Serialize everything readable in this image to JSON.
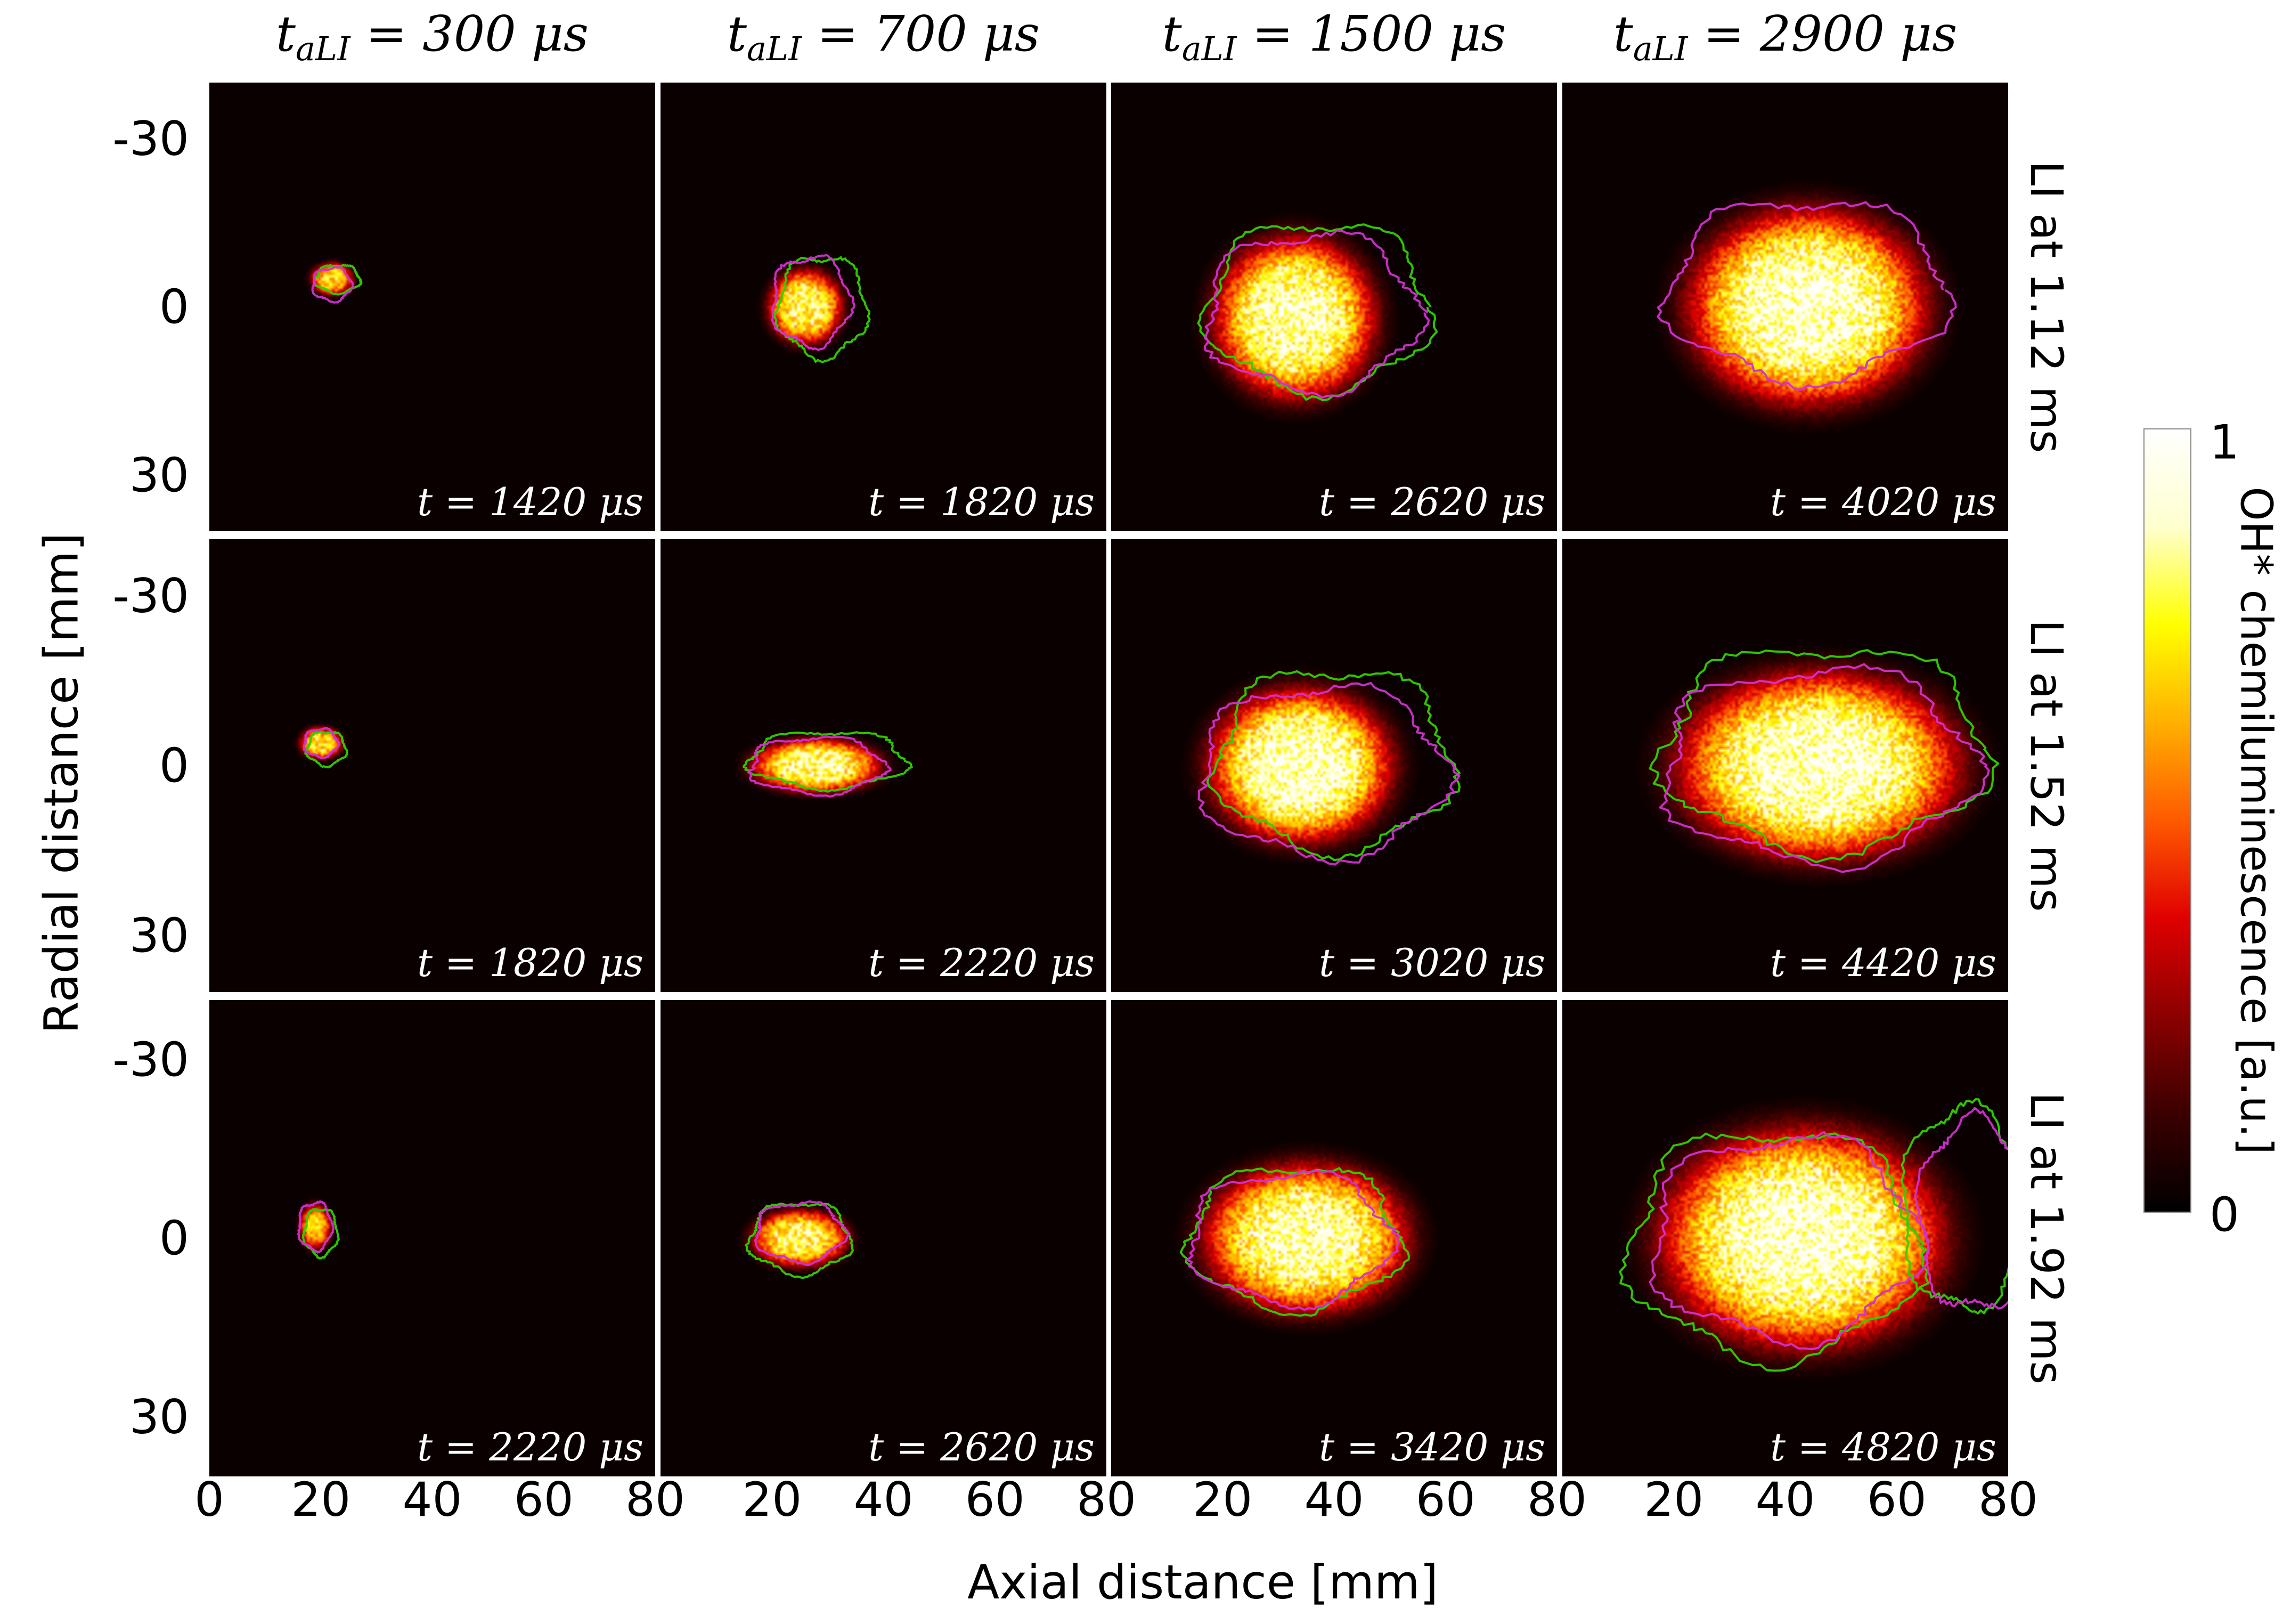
{
  "chart_data": {
    "type": "heatmap",
    "column_headers": [
      {
        "sym": "t",
        "sub": "aLI",
        "rest": " = 300 μs"
      },
      {
        "sym": "t",
        "sub": "aLI",
        "rest": " = 700 μs"
      },
      {
        "sym": "t",
        "sub": "aLI",
        "rest": " = 1500 μs"
      },
      {
        "sym": "t",
        "sub": "aLI",
        "rest": " = 2900 μs"
      }
    ],
    "row_labels": [
      "LI at 1.12 ms",
      "LI at 1.52 ms",
      "LI at 1.92 ms"
    ],
    "panel_times": [
      [
        "t = 1420 μs",
        "t = 1820 μs",
        "t = 2620 μs",
        "t = 4020 μs"
      ],
      [
        "t = 1820 μs",
        "t = 2220 μs",
        "t = 3020 μs",
        "t = 4420 μs"
      ],
      [
        "t = 2220 μs",
        "t = 2620 μs",
        "t = 3420 μs",
        "t = 4820 μs"
      ]
    ],
    "xlabel": "Axial distance [mm]",
    "ylabel": "Radial distance [mm]",
    "xlim": [
      0,
      80
    ],
    "ylim": [
      -40,
      40
    ],
    "x_ticks": [
      "0",
      "20",
      "40",
      "60",
      "80"
    ],
    "x_tick_values": [
      0,
      20,
      40,
      60,
      80
    ],
    "y_ticks": [
      "-30",
      "0",
      "30"
    ],
    "y_tick_values": [
      -30,
      0,
      30
    ],
    "colorbar": {
      "label": "OH* chemiluminescence [a.u.]",
      "min_label": "0",
      "max_label": "1",
      "stops": [
        "#000000",
        "#3a0000",
        "#8b0000",
        "#e00000",
        "#ff5a00",
        "#ffb000",
        "#ffff00",
        "#ffffcf",
        "#ffffff"
      ]
    },
    "contour_colors": [
      "#30d000",
      "#d030d0"
    ],
    "background_color": "#0a0000",
    "kernels": [
      [
        {
          "cx": 22,
          "cy": -5,
          "rx": 4,
          "ry": 3,
          "peak": 0.75
        },
        {
          "cx": 26,
          "cy": 0,
          "rx": 7,
          "ry": 7,
          "peak": 0.85
        },
        {
          "cx": 33,
          "cy": 2,
          "rx": 15,
          "ry": 15,
          "peak": 0.95
        },
        {
          "cx": 44,
          "cy": 0,
          "rx": 22,
          "ry": 18,
          "peak": 1.0
        }
      ],
      [
        {
          "cx": 20,
          "cy": -4,
          "rx": 4,
          "ry": 3,
          "peak": 0.75
        },
        {
          "cx": 28,
          "cy": 0,
          "rx": 12,
          "ry": 5,
          "peak": 0.9
        },
        {
          "cx": 34,
          "cy": 0,
          "rx": 17,
          "ry": 14,
          "peak": 1.0
        },
        {
          "cx": 46,
          "cy": 0,
          "rx": 26,
          "ry": 17,
          "peak": 1.0
        }
      ],
      [
        {
          "cx": 19,
          "cy": -2,
          "rx": 3,
          "ry": 4,
          "peak": 0.7
        },
        {
          "cx": 25,
          "cy": 0,
          "rx": 9,
          "ry": 5,
          "peak": 0.85
        },
        {
          "cx": 35,
          "cy": 0,
          "rx": 19,
          "ry": 13,
          "peak": 0.95
        },
        {
          "cx": 43,
          "cy": 0,
          "rx": 26,
          "ry": 19,
          "peak": 1.0
        }
      ]
    ],
    "contours": [
      [
        [
          {
            "color": 0,
            "cx": 23,
            "cy": -5,
            "rx": 4,
            "ry": 2.5
          },
          {
            "color": 1,
            "cx": 22,
            "cy": -4,
            "rx": 3.5,
            "ry": 3
          }
        ],
        [
          {
            "color": 0,
            "cx": 29,
            "cy": 0,
            "rx": 8,
            "ry": 9
          },
          {
            "color": 1,
            "cx": 27,
            "cy": -1,
            "rx": 7,
            "ry": 8
          }
        ],
        [
          {
            "color": 0,
            "cx": 37,
            "cy": 0,
            "rx": 20,
            "ry": 15
          },
          {
            "color": 1,
            "cx": 36,
            "cy": 1,
            "rx": 19,
            "ry": 14
          }
        ],
        [
          {
            "color": 1,
            "cx": 44,
            "cy": -3,
            "rx": 25,
            "ry": 16
          }
        ]
      ],
      [
        [
          {
            "color": 0,
            "cx": 21,
            "cy": -3,
            "rx": 3.5,
            "ry": 3
          },
          {
            "color": 1,
            "cx": 20,
            "cy": -4,
            "rx": 3,
            "ry": 2.5
          }
        ],
        [
          {
            "color": 0,
            "cx": 30,
            "cy": -1,
            "rx": 14,
            "ry": 5
          },
          {
            "color": 1,
            "cx": 28,
            "cy": 0,
            "rx": 12,
            "ry": 5
          }
        ],
        [
          {
            "color": 0,
            "cx": 40,
            "cy": -1,
            "rx": 21,
            "ry": 16
          },
          {
            "color": 1,
            "cx": 38,
            "cy": 1,
            "rx": 22,
            "ry": 15
          }
        ],
        [
          {
            "color": 0,
            "cx": 47,
            "cy": -3,
            "rx": 29,
            "ry": 18
          },
          {
            "color": 1,
            "cx": 46,
            "cy": 0,
            "rx": 28,
            "ry": 17
          }
        ]
      ],
      [
        [
          {
            "color": 0,
            "cx": 20,
            "cy": -1,
            "rx": 3,
            "ry": 4
          },
          {
            "color": 1,
            "cx": 19,
            "cy": -2,
            "rx": 3,
            "ry": 4
          }
        ],
        [
          {
            "color": 0,
            "cx": 25,
            "cy": 0,
            "rx": 9,
            "ry": 6
          },
          {
            "color": 1,
            "cx": 25,
            "cy": -1,
            "rx": 8,
            "ry": 5
          }
        ],
        [
          {
            "color": 0,
            "cx": 33,
            "cy": 0,
            "rx": 19,
            "ry": 12
          },
          {
            "color": 1,
            "cx": 32,
            "cy": 0,
            "rx": 18,
            "ry": 11
          }
        ],
        [
          {
            "color": 0,
            "cx": 38,
            "cy": 1,
            "rx": 26,
            "ry": 19
          },
          {
            "color": 1,
            "cx": 40,
            "cy": 0,
            "rx": 24,
            "ry": 17
          },
          {
            "color": 0,
            "cx": 72,
            "cy": -5,
            "rx": 11,
            "ry": 17
          },
          {
            "color": 1,
            "cx": 74,
            "cy": -4,
            "rx": 10,
            "ry": 16
          }
        ]
      ]
    ]
  }
}
